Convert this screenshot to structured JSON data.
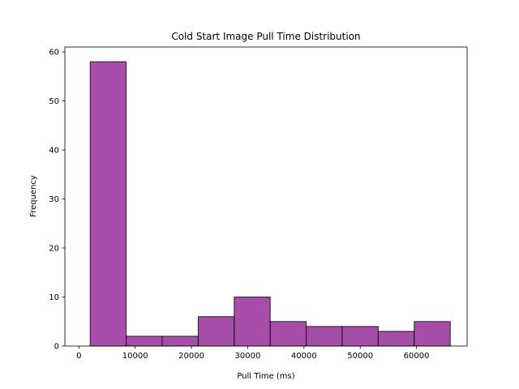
{
  "chart_data": {
    "type": "bar",
    "title": "Cold Start Image Pull Time Distribution",
    "xlabel": "Pull Time (ms)",
    "ylabel": "Frequency",
    "xlim": [
      -2500,
      69000
    ],
    "ylim": [
      0,
      61
    ],
    "xticks": [
      0,
      10000,
      20000,
      30000,
      40000,
      50000,
      60000
    ],
    "yticks": [
      0,
      10,
      20,
      30,
      40,
      50,
      60
    ],
    "bins": [
      {
        "start": 2000,
        "end": 8400,
        "count": 58
      },
      {
        "start": 8400,
        "end": 14800,
        "count": 2
      },
      {
        "start": 14800,
        "end": 21200,
        "count": 2
      },
      {
        "start": 21200,
        "end": 27600,
        "count": 6
      },
      {
        "start": 27600,
        "end": 34000,
        "count": 10
      },
      {
        "start": 34000,
        "end": 40400,
        "count": 5
      },
      {
        "start": 40400,
        "end": 46800,
        "count": 4
      },
      {
        "start": 46800,
        "end": 53200,
        "count": 4
      },
      {
        "start": 53200,
        "end": 59600,
        "count": 3
      },
      {
        "start": 59600,
        "end": 66000,
        "count": 5
      }
    ],
    "bar_color": "#9b3a9e",
    "bar_edge_color": "#000000",
    "grid": false
  }
}
